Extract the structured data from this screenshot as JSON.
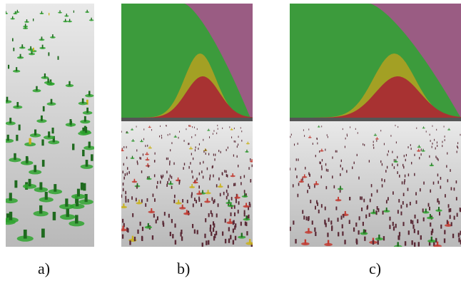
{
  "captions": {
    "a": "a)",
    "b": "b)",
    "c": "c)"
  },
  "colors": {
    "floor_light": "#e9e9e9",
    "floor_dark": "#b9b9b9",
    "agent_dark": "#5a2a36",
    "agent_green": "#2fa52f",
    "agent_green_dark": "#1f6a1f",
    "agent_red": "#c23a30",
    "agent_yellow": "#c9b21a",
    "area_green": "#3c9b3c",
    "area_yellow": "#a3a024",
    "area_red": "#a83232",
    "area_purple": "#9a5c83"
  }
}
